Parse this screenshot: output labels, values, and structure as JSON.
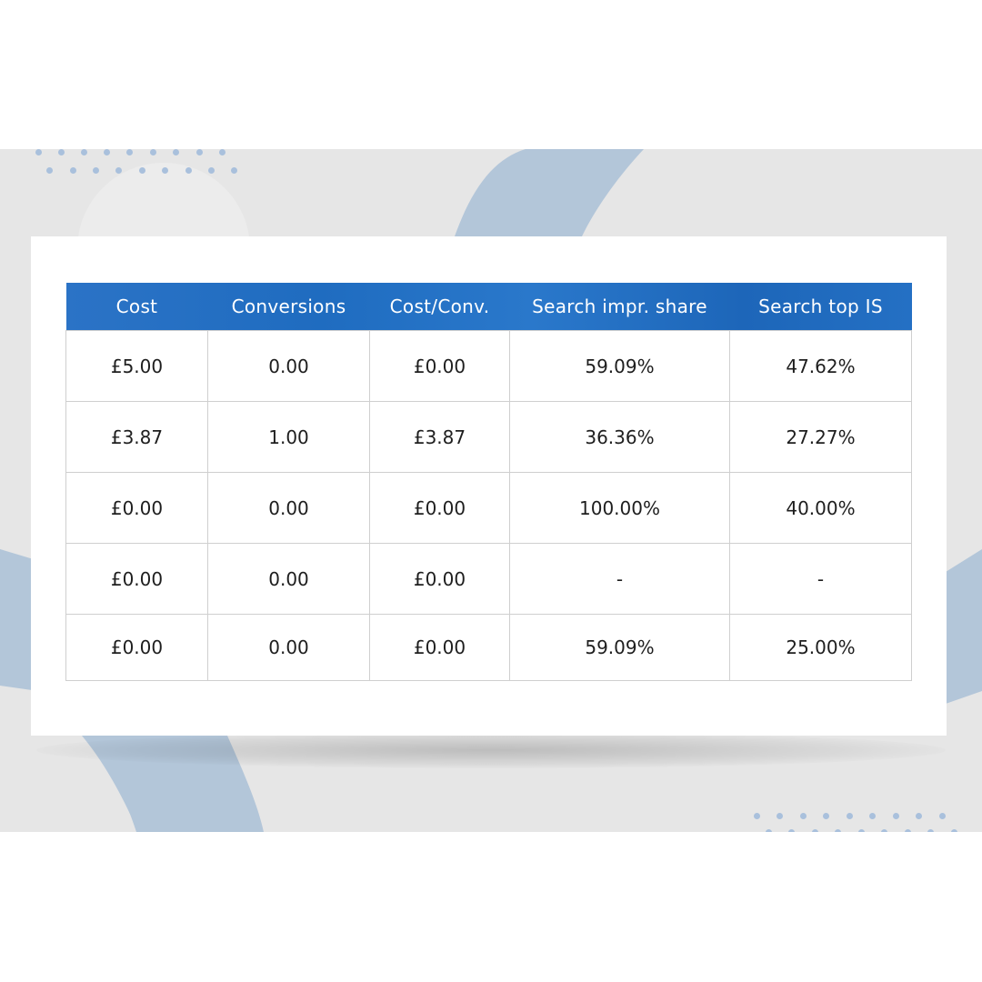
{
  "colors": {
    "header_bg": "#2170c3",
    "accent_shape": "#b3c6d9",
    "dots": "#a9c0dc",
    "band_bg": "#e6e6e6"
  },
  "table": {
    "columns": [
      "Cost",
      "Conversions",
      "Cost/Conv.",
      "Search impr. share",
      "Search top IS"
    ],
    "rows": [
      [
        "£5.00",
        "0.00",
        "£0.00",
        "59.09%",
        "47.62%"
      ],
      [
        "£3.87",
        "1.00",
        "£3.87",
        "36.36%",
        "27.27%"
      ],
      [
        "£0.00",
        "0.00",
        "£0.00",
        "100.00%",
        "40.00%"
      ],
      [
        "£0.00",
        "0.00",
        "£0.00",
        "-",
        "-"
      ],
      [
        "£0.00",
        "0.00",
        "£0.00",
        "59.09%",
        "25.00%"
      ]
    ]
  }
}
